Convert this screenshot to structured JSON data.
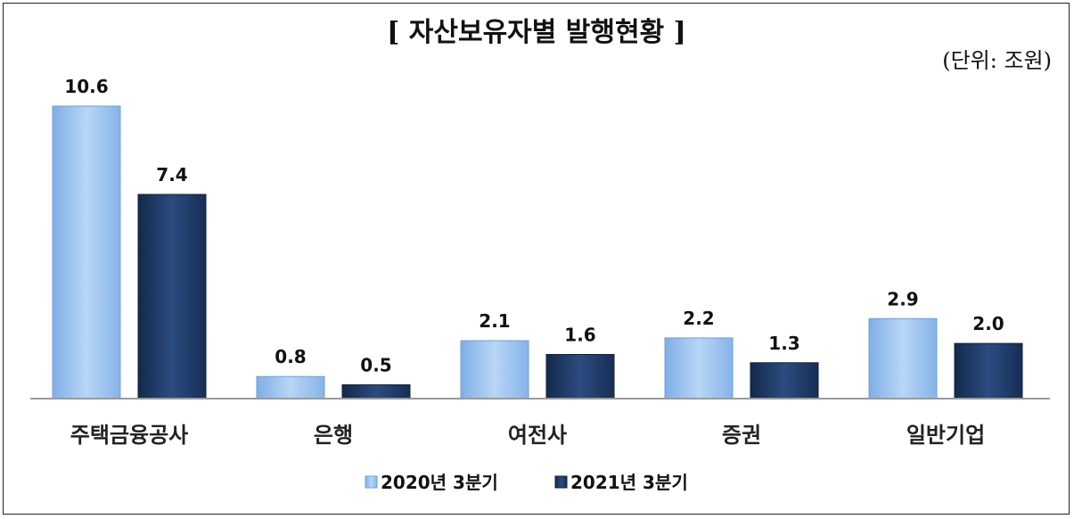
{
  "chart_data": {
    "type": "bar",
    "title": "[ 자산보유자별 발행현황 ]",
    "unit": "(단위: 조원)",
    "categories": [
      "주택금융공사",
      "은행",
      "여전사",
      "증권",
      "일반기업"
    ],
    "series": [
      {
        "name": "2020년 3분기",
        "values": [
          10.6,
          0.8,
          2.1,
          2.2,
          2.9
        ],
        "labels": [
          "10.6",
          "0.8",
          "2.1",
          "2.2",
          "2.9"
        ],
        "color": "#9DC3EF"
      },
      {
        "name": "2021년 3분기",
        "values": [
          7.4,
          0.5,
          1.6,
          1.3,
          2.0
        ],
        "labels": [
          "7.4",
          "0.5",
          "1.6",
          "1.3",
          "2.0"
        ],
        "color": "#1F3A66"
      }
    ],
    "ylim": [
      0,
      10.6
    ],
    "grid": false,
    "legend": "bottom-center"
  }
}
